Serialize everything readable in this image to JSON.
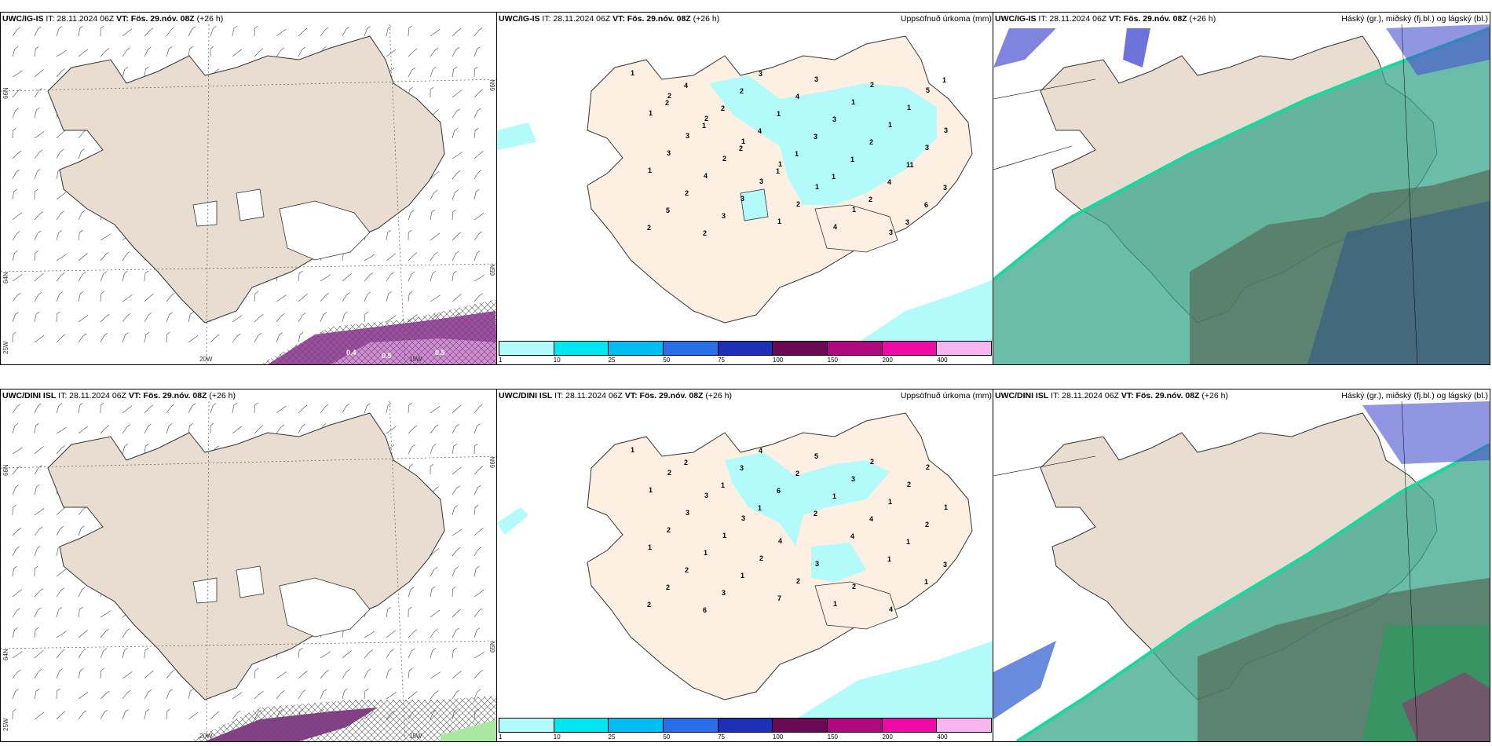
{
  "panels": {
    "top_wind": {
      "model": "UWC/IG-IS",
      "it": "IT: 28.11.2024 06Z",
      "vt": "VT: Fös. 29.nóv. 08Z",
      "lead": "(+26 h)",
      "lat_labels": [
        "66N",
        "64N",
        "65N",
        "25W"
      ],
      "lon_labels": [
        "20W",
        "15W"
      ],
      "right_labels": [
        "66N",
        "65N"
      ],
      "pressure_labels": [
        "0.4",
        "0.5",
        "0.5"
      ]
    },
    "top_precip": {
      "model": "UWC/IG-IS",
      "it": "IT: 28.11.2024 06Z",
      "vt": "VT: Fös. 29.nóv. 08Z",
      "lead": "(+26 h)",
      "title": "Uppsöfnuð úrkoma (mm)"
    },
    "top_cloud": {
      "model": "UWC/IG-IS",
      "it": "IT: 28.11.2024 06Z",
      "vt": "VT: Fös. 29.nóv. 08Z",
      "lead": "(+26 h)",
      "title": "Háský (gr.), miðský (fj.bl.) og lágský (bl.)"
    },
    "bot_wind": {
      "model": "UWC/DINI ISL",
      "it": "IT: 28.11.2024 06Z",
      "vt": "VT: Fös. 29.nóv. 08Z",
      "lead": "(+26 h)",
      "lat_labels": [
        "66N",
        "64N",
        "65N",
        "25W"
      ],
      "lon_labels": [
        "20W",
        "15W"
      ],
      "right_labels": [
        "66N",
        "65N"
      ]
    },
    "bot_precip": {
      "model": "UWC/DINI ISL",
      "it": "IT: 28.11.2024 06Z",
      "vt": "VT: Fös. 29.nóv. 08Z",
      "lead": "(+26 h)",
      "title": "Uppsöfnuð úrkoma (mm)"
    },
    "bot_cloud": {
      "model": "UWC/DINI ISL",
      "it": "IT: 28.11.2024 06Z",
      "vt": "VT: Fös. 29.nóv. 08Z",
      "lead": "(+26 h)",
      "title": "Háský (gr.), miðský (fj.bl.) og lágský (bl.)"
    }
  },
  "colorbar": {
    "ticks": [
      "1",
      "10",
      "25",
      "50",
      "75",
      "100",
      "150",
      "200",
      "400"
    ],
    "colors": [
      "#b3fbfb",
      "#00e6f0",
      "#00bff0",
      "#2a6ee8",
      "#1f2fb8",
      "#6b0a54",
      "#b0087e",
      "#ee0ba8",
      "#f5b6ef"
    ]
  },
  "precip_numbers_top": [
    "1",
    "2",
    "2",
    "1",
    "1",
    "1",
    "1",
    "3",
    "5",
    "1",
    "3",
    "2",
    "3",
    "2",
    "4",
    "2",
    "1",
    "3",
    "3",
    "4",
    "3",
    "1",
    "3",
    "1",
    "1",
    "3",
    "1",
    "2",
    "3",
    "3",
    "4",
    "3",
    "2",
    "11",
    "3",
    "5",
    "2",
    "2",
    "1",
    "3",
    "1",
    "4",
    "6",
    "2",
    "4",
    "2",
    "4",
    "1",
    "1",
    "2",
    "3",
    "1",
    "2",
    "1",
    "2",
    "1"
  ],
  "precip_numbers_bot": [
    "1",
    "2",
    "3",
    "3",
    "4",
    "3",
    "2",
    "4",
    "2",
    "1",
    "3",
    "1",
    "2",
    "2",
    "1",
    "2",
    "2",
    "1",
    "2",
    "1",
    "1",
    "7",
    "5",
    "3",
    "1",
    "2",
    "1",
    "2",
    "3",
    "4",
    "2",
    "1",
    "4",
    "1",
    "3",
    "2",
    "6",
    "3",
    "6",
    "2",
    "4",
    "1",
    "1",
    "2",
    "2",
    "1",
    "1"
  ]
}
